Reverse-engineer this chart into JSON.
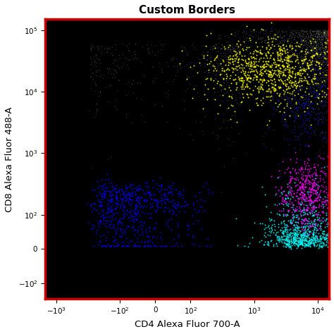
{
  "title": "Custom Borders",
  "xlabel": "CD4 Alexa Fluor 700-A",
  "ylabel": "CD8 Alexa Fluor 488-A",
  "bg_color": "#000000",
  "border_color": "#cc0000",
  "title_color": "#000000",
  "tick_color": "#000000",
  "seed": 42,
  "gray_color": "#555555",
  "blue_right_color": "#1111bb",
  "clusters": [
    {
      "name": "yellow",
      "color": "#ffff00"
    },
    {
      "name": "blue_left",
      "color": "#0000ee"
    },
    {
      "name": "cyan",
      "color": "#00ffff"
    },
    {
      "name": "magenta",
      "color": "#ff00ff"
    }
  ],
  "x_ticks": [
    -1000,
    -100,
    0,
    100,
    1000,
    10000
  ],
  "y_ticks": [
    -100,
    0,
    100,
    1000,
    10000,
    100000
  ],
  "x_tick_labels": [
    "-10^3",
    "-10^2",
    "0",
    "10^2",
    "10^3",
    "10^4"
  ],
  "y_tick_labels": [
    "-10^2",
    "0",
    "10^2",
    "10^3",
    "10^4",
    "10^5"
  ],
  "xlim": [
    -1500,
    15000
  ],
  "ylim": [
    -180,
    150000
  ]
}
